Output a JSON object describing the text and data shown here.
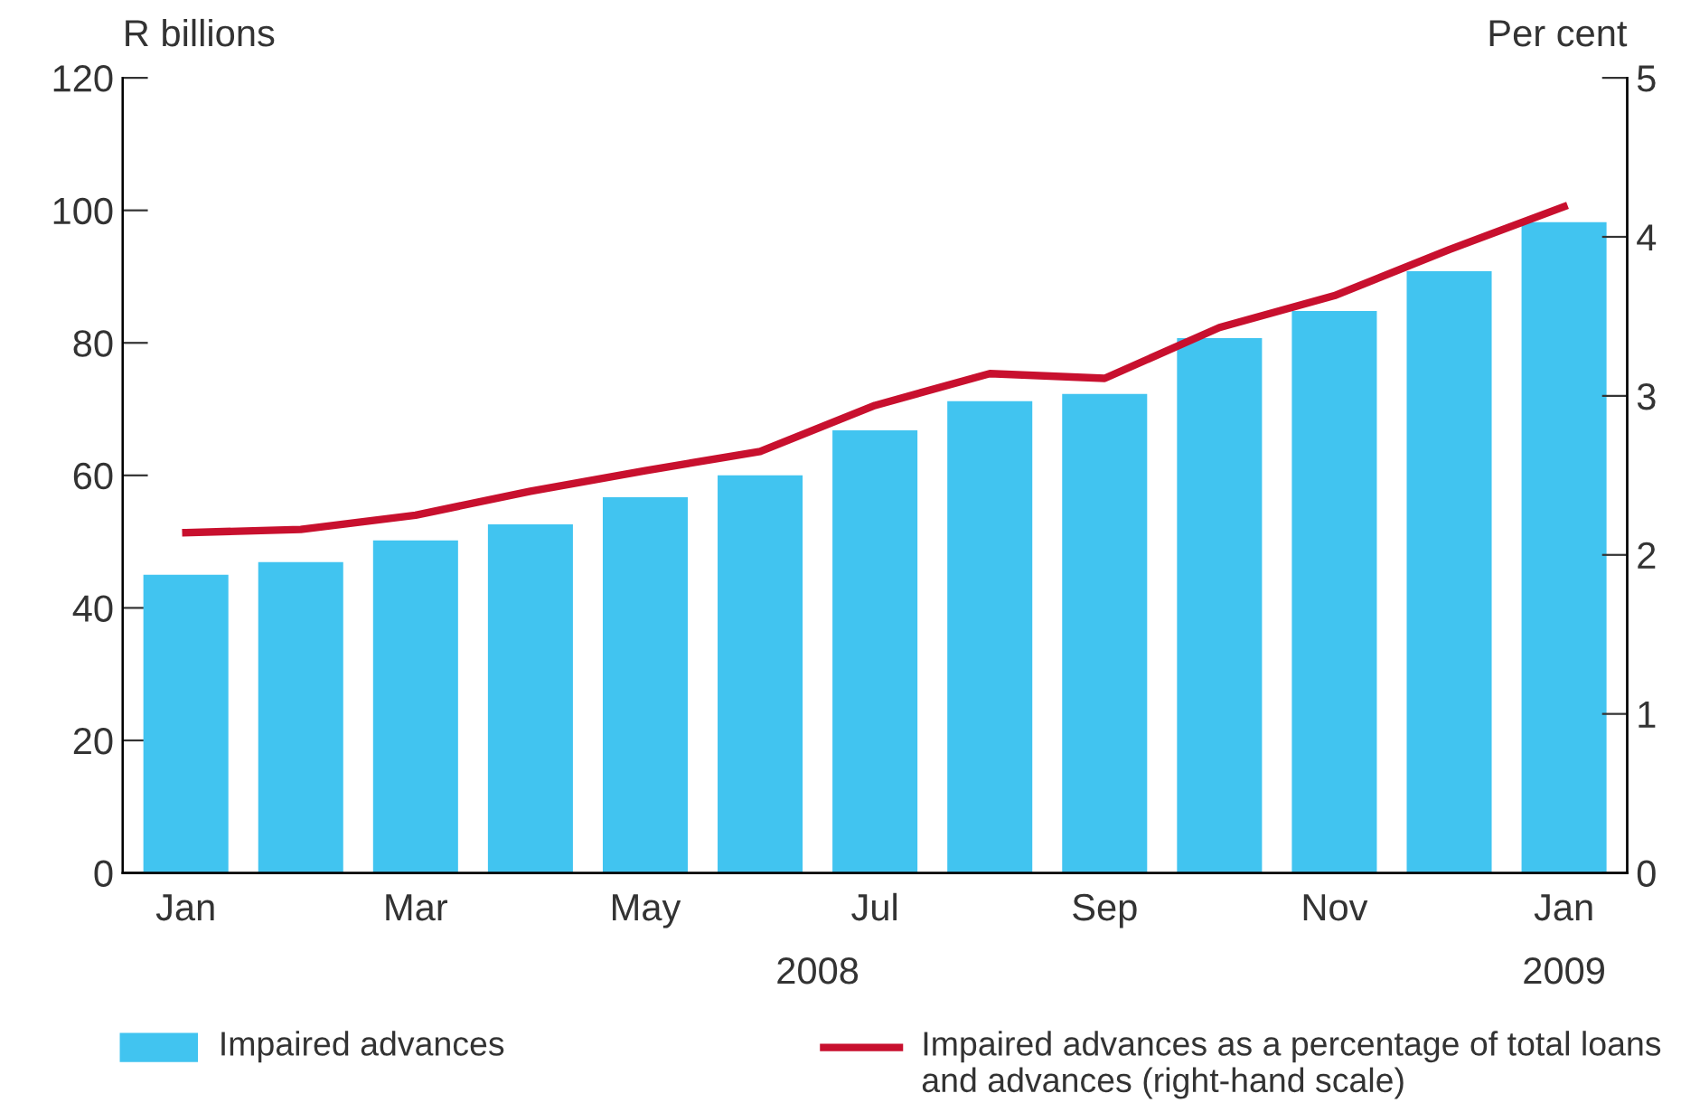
{
  "chart_data": {
    "type": "bar",
    "ylabel": "R billions",
    "y2label": "Per cent",
    "categories": [
      "Jan",
      null,
      "Mar",
      null,
      "May",
      null,
      "Jul",
      null,
      "Sep",
      null,
      "Nov",
      null,
      "Jan"
    ],
    "series": [
      {
        "name": "Impaired advances",
        "color": "#41c4f0",
        "values": [
          45.0,
          46.9,
          50.2,
          52.6,
          56.7,
          60.0,
          66.8,
          71.2,
          72.3,
          80.7,
          84.8,
          90.8,
          98.2
        ]
      },
      {
        "name": "Impaired advances as a percentage of total loans and advances (right-hand scale)",
        "type": "line",
        "axis": "y2",
        "color": "#c8102e",
        "values": [
          2.14,
          2.16,
          2.25,
          2.4,
          2.53,
          2.65,
          2.94,
          3.14,
          3.11,
          3.43,
          3.63,
          3.92,
          4.19
        ]
      }
    ],
    "ylim": [
      0,
      120
    ],
    "yticks": [
      0,
      20,
      40,
      60,
      80,
      100,
      120
    ],
    "y2lim": [
      0,
      5
    ],
    "y2ticks": [
      0,
      1,
      2,
      3,
      4,
      5
    ],
    "annotations": [
      "2008",
      "2009"
    ],
    "legend": "bottom",
    "grid": false
  }
}
